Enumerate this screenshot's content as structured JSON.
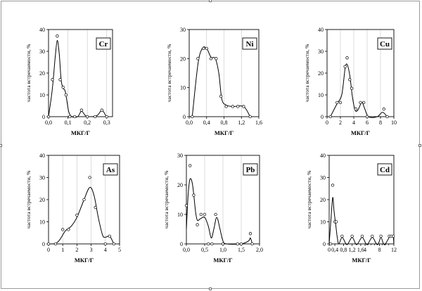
{
  "chart_data": [
    {
      "type": "line",
      "element": "Cr",
      "xlabel": "МКГ/Г",
      "ylabel": "частота встречаемости, %",
      "xlim": [
        0,
        0.33
      ],
      "ylim": [
        0,
        40
      ],
      "xticks": [
        0.0,
        0.1,
        0.2,
        0.3
      ],
      "xtick_labels": [
        "0,0",
        "0,1",
        "0,2",
        "0,3"
      ],
      "yticks": [
        0,
        10,
        20,
        30,
        40
      ],
      "ytick_labels": [
        "0",
        "10",
        "20",
        "30",
        "40"
      ],
      "vgrid": [
        0.1,
        0.2,
        0.3
      ],
      "points": [
        [
          0.0,
          0
        ],
        [
          0.02,
          17
        ],
        [
          0.045,
          37
        ],
        [
          0.06,
          17
        ],
        [
          0.075,
          13.5
        ],
        [
          0.09,
          10
        ],
        [
          0.11,
          0
        ],
        [
          0.135,
          0
        ],
        [
          0.17,
          3
        ],
        [
          0.2,
          0
        ],
        [
          0.24,
          0
        ],
        [
          0.275,
          3
        ],
        [
          0.3,
          0
        ]
      ],
      "curve": [
        [
          0.0,
          0
        ],
        [
          0.02,
          13
        ],
        [
          0.035,
          28
        ],
        [
          0.045,
          35
        ],
        [
          0.055,
          29
        ],
        [
          0.065,
          17
        ],
        [
          0.075,
          13
        ],
        [
          0.085,
          12
        ],
        [
          0.095,
          7
        ],
        [
          0.105,
          2
        ],
        [
          0.12,
          0
        ],
        [
          0.15,
          0
        ],
        [
          0.17,
          2.5
        ],
        [
          0.19,
          0.5
        ],
        [
          0.21,
          0
        ],
        [
          0.25,
          0.5
        ],
        [
          0.275,
          3
        ],
        [
          0.295,
          0.5
        ],
        [
          0.3,
          0
        ]
      ]
    },
    {
      "type": "line",
      "element": "Ni",
      "xlabel": "МКГ/Г",
      "ylabel": "частота встречаемости, %",
      "xlim": [
        0,
        1.6
      ],
      "ylim": [
        0,
        30
      ],
      "xticks": [
        0.0,
        0.4,
        0.8,
        1.2,
        1.6
      ],
      "xtick_labels": [
        "0,0",
        "0,4",
        "0,8",
        "1,2",
        "1,6"
      ],
      "yticks": [
        0,
        10,
        20,
        30
      ],
      "ytick_labels": [
        "0",
        "10",
        "20",
        "30"
      ],
      "vgrid": [
        0.4,
        0.8,
        1.2
      ],
      "points": [
        [
          0.07,
          0
        ],
        [
          0.2,
          20
        ],
        [
          0.33,
          23.5
        ],
        [
          0.4,
          23.5
        ],
        [
          0.5,
          20
        ],
        [
          0.62,
          20
        ],
        [
          0.73,
          7
        ],
        [
          0.85,
          3.5
        ],
        [
          1.0,
          3.5
        ],
        [
          1.12,
          3.5
        ],
        [
          1.25,
          3.5
        ],
        [
          1.4,
          0
        ]
      ],
      "curve": [
        [
          0.07,
          0
        ],
        [
          0.2,
          18
        ],
        [
          0.3,
          23.5
        ],
        [
          0.4,
          23.5
        ],
        [
          0.5,
          20.5
        ],
        [
          0.6,
          20
        ],
        [
          0.68,
          15
        ],
        [
          0.75,
          6
        ],
        [
          0.85,
          4
        ],
        [
          1.0,
          3.5
        ],
        [
          1.25,
          3.5
        ],
        [
          1.4,
          0
        ]
      ]
    },
    {
      "type": "line",
      "element": "Cu",
      "xlabel": "МКГ/Г",
      "ylabel": "частота встречаемости, %",
      "xlim": [
        0,
        10
      ],
      "ylim": [
        0,
        40
      ],
      "xticks": [
        0,
        2,
        4,
        6,
        8,
        10
      ],
      "xtick_labels": [
        "0",
        "2",
        "4",
        "6",
        "8",
        "10"
      ],
      "yticks": [
        0,
        10,
        20,
        30,
        40
      ],
      "ytick_labels": [
        "0",
        "10",
        "20",
        "30",
        "40"
      ],
      "vgrid": [
        2,
        4,
        6,
        8
      ],
      "points": [
        [
          0.5,
          0
        ],
        [
          1.5,
          6.5
        ],
        [
          2.0,
          6.5
        ],
        [
          2.7,
          23
        ],
        [
          3.0,
          27
        ],
        [
          3.4,
          17
        ],
        [
          3.7,
          13
        ],
        [
          4.3,
          3.5
        ],
        [
          5.0,
          6.5
        ],
        [
          5.5,
          6.5
        ],
        [
          6.0,
          0
        ],
        [
          8.5,
          3.5
        ],
        [
          9.0,
          0
        ]
      ],
      "curve": [
        [
          0.5,
          0
        ],
        [
          1.5,
          6
        ],
        [
          2.2,
          10
        ],
        [
          2.7,
          22
        ],
        [
          3.0,
          24
        ],
        [
          3.4,
          19
        ],
        [
          3.8,
          9
        ],
        [
          4.2,
          3
        ],
        [
          4.6,
          3
        ],
        [
          5.2,
          6.5
        ],
        [
          5.6,
          4
        ],
        [
          6.2,
          0
        ],
        [
          7.5,
          0
        ],
        [
          8.3,
          2
        ],
        [
          9.0,
          0
        ]
      ]
    },
    {
      "type": "line",
      "element": "As",
      "xlabel": "МКГ/Г",
      "ylabel": "частота встречаемости, %",
      "xlim": [
        0,
        5
      ],
      "ylim": [
        0,
        40
      ],
      "xticks": [
        0,
        1,
        2,
        3,
        4,
        5
      ],
      "xtick_labels": [
        "0",
        "1",
        "2",
        "3",
        "4",
        "5"
      ],
      "yticks": [
        0,
        10,
        20,
        30,
        40
      ],
      "ytick_labels": [
        "0",
        "10",
        "20",
        "30",
        "40"
      ],
      "vgrid": [
        1,
        2,
        3,
        4
      ],
      "points": [
        [
          0.0,
          0
        ],
        [
          0.5,
          0
        ],
        [
          1.0,
          6.5
        ],
        [
          1.4,
          6.5
        ],
        [
          2.0,
          13
        ],
        [
          2.5,
          20
        ],
        [
          2.9,
          30
        ],
        [
          3.3,
          16.5
        ],
        [
          4.0,
          0
        ],
        [
          4.3,
          3.5
        ],
        [
          4.6,
          0
        ]
      ],
      "curve": [
        [
          0.0,
          0
        ],
        [
          0.5,
          0.2
        ],
        [
          0.8,
          2
        ],
        [
          1.2,
          6
        ],
        [
          1.6,
          8
        ],
        [
          2.0,
          12
        ],
        [
          2.5,
          20
        ],
        [
          2.9,
          25.5
        ],
        [
          3.2,
          22
        ],
        [
          3.5,
          12
        ],
        [
          3.8,
          4
        ],
        [
          4.0,
          3
        ],
        [
          4.3,
          3.5
        ],
        [
          4.6,
          0
        ]
      ]
    },
    {
      "type": "line",
      "element": "Pb",
      "xlabel": "МКГ/Г",
      "ylabel": "частота встречаемости, %",
      "xlim": [
        0,
        2.0
      ],
      "ylim": [
        0,
        30
      ],
      "xticks": [
        0.0,
        0.5,
        1.0,
        1.5,
        2.0
      ],
      "xtick_labels": [
        "0,0",
        "0,5",
        "1,0",
        "1,5",
        "2,0"
      ],
      "yticks": [
        0,
        10,
        20,
        30
      ],
      "ytick_labels": [
        "0",
        "10",
        "20",
        "30"
      ],
      "vgrid": [
        0.5,
        1.0,
        1.5
      ],
      "points": [
        [
          0.0,
          13
        ],
        [
          0.1,
          26.5
        ],
        [
          0.2,
          16.5
        ],
        [
          0.3,
          6.5
        ],
        [
          0.4,
          10
        ],
        [
          0.5,
          10
        ],
        [
          0.6,
          0
        ],
        [
          0.7,
          0
        ],
        [
          0.8,
          10
        ],
        [
          1.0,
          0
        ],
        [
          1.4,
          0
        ],
        [
          1.5,
          0
        ],
        [
          1.75,
          3.5
        ],
        [
          1.8,
          0
        ]
      ],
      "curve": [
        [
          0.0,
          5
        ],
        [
          0.05,
          17
        ],
        [
          0.1,
          22
        ],
        [
          0.17,
          20
        ],
        [
          0.25,
          11
        ],
        [
          0.3,
          8
        ],
        [
          0.38,
          8.5
        ],
        [
          0.5,
          9
        ],
        [
          0.6,
          6
        ],
        [
          0.68,
          2
        ],
        [
          0.75,
          5
        ],
        [
          0.83,
          9
        ],
        [
          0.92,
          5
        ],
        [
          1.0,
          1
        ],
        [
          1.1,
          0
        ],
        [
          1.5,
          0
        ],
        [
          1.7,
          1
        ],
        [
          1.75,
          2
        ],
        [
          1.8,
          0
        ]
      ]
    },
    {
      "type": "line",
      "element": "Cd",
      "xlabel": "МКГ/Г",
      "ylabel": "частота встречаемости, %",
      "xlim": [
        0,
        12
      ],
      "ylim": [
        0,
        40
      ],
      "xticks": [
        0,
        0.4,
        0.8,
        1.2,
        1.6,
        4,
        8,
        12
      ],
      "xtick_labels": [
        "0",
        "0,4",
        "0,8",
        "1,2",
        "1,6",
        "4",
        "8",
        "12"
      ],
      "xtick_pos": [
        0,
        0.088,
        0.222,
        0.355,
        0.488,
        0.555,
        0.778,
        1.0
      ],
      "yticks": [
        0,
        10,
        20,
        30,
        40
      ],
      "ytick_labels": [
        "0",
        "10",
        "20",
        "30",
        "40"
      ],
      "vgrid": [],
      "points_pos": [
        [
          0.022,
          0
        ],
        [
          0.055,
          26.5
        ],
        [
          0.088,
          10
        ],
        [
          0.11,
          10
        ],
        [
          0.2,
          3.5
        ],
        [
          0.355,
          3.5
        ],
        [
          0.51,
          3.5
        ],
        [
          0.666,
          3.5
        ],
        [
          0.8,
          3.5
        ],
        [
          0.93,
          3.5
        ],
        [
          0.96,
          3.5
        ],
        [
          0.99,
          3.5
        ]
      ],
      "curve_pos": [
        [
          0.0,
          0
        ],
        [
          0.03,
          12
        ],
        [
          0.055,
          21
        ],
        [
          0.075,
          15
        ],
        [
          0.1,
          9
        ],
        [
          0.125,
          3
        ],
        [
          0.15,
          0
        ],
        [
          0.2,
          3
        ],
        [
          0.26,
          0
        ],
        [
          0.29,
          0
        ],
        [
          0.355,
          3
        ],
        [
          0.41,
          0
        ],
        [
          0.44,
          0
        ],
        [
          0.51,
          3
        ],
        [
          0.57,
          0
        ],
        [
          0.6,
          0
        ],
        [
          0.666,
          3
        ],
        [
          0.73,
          0
        ],
        [
          0.76,
          0
        ],
        [
          0.8,
          3
        ],
        [
          0.84,
          0
        ],
        [
          0.87,
          0
        ],
        [
          0.93,
          3
        ],
        [
          0.96,
          3.2
        ],
        [
          0.99,
          3
        ],
        [
          1.0,
          0
        ]
      ]
    }
  ]
}
